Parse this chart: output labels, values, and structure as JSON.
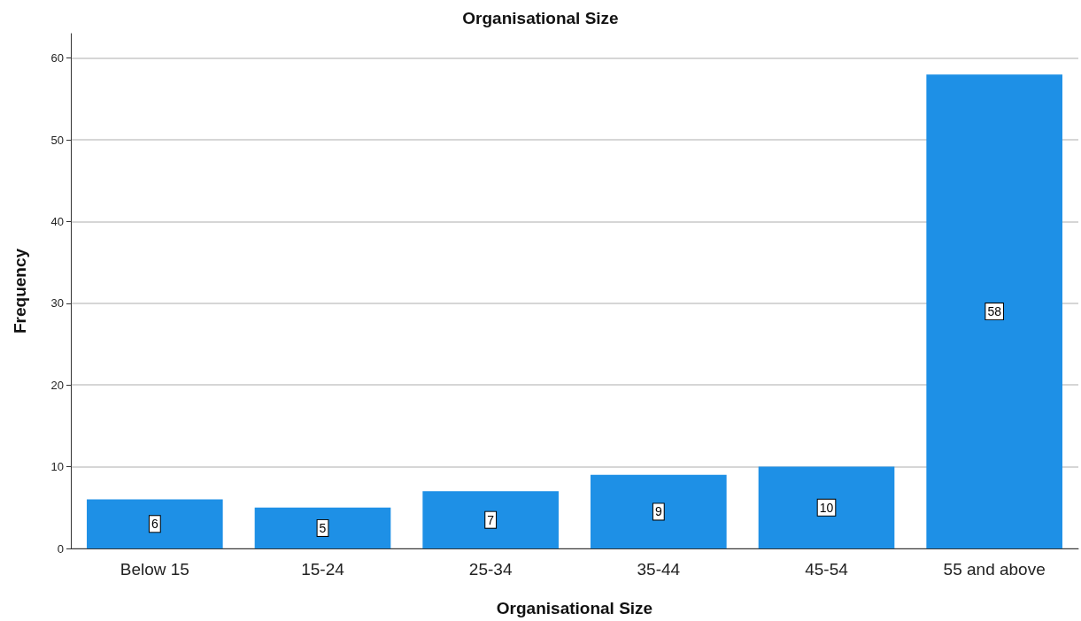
{
  "chart_data": {
    "type": "bar",
    "title": "Organisational Size",
    "xlabel": "Organisational Size",
    "ylabel": "Frequency",
    "categories": [
      "Below 15",
      "15-24",
      "25-34",
      "35-44",
      "45-54",
      "55 and above"
    ],
    "values": [
      6,
      5,
      7,
      9,
      10,
      58
    ],
    "color": "#1e90e6",
    "ylim": [
      0,
      63
    ],
    "yticks": [
      0,
      10,
      20,
      30,
      40,
      50,
      60
    ],
    "grid": "y",
    "data_labels": true
  }
}
